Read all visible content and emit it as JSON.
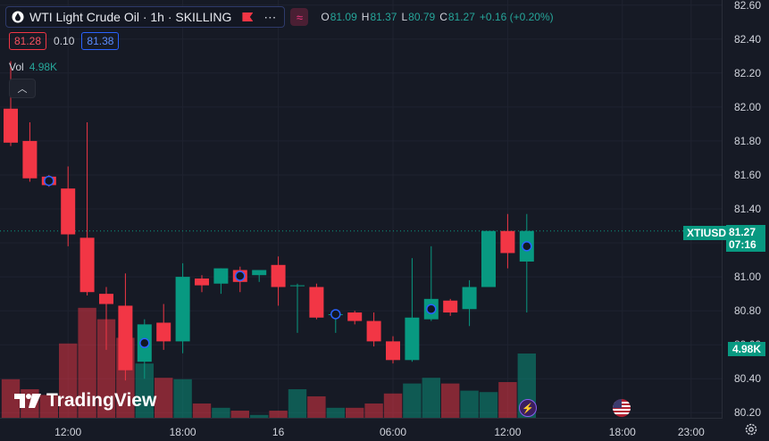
{
  "legend": {
    "title": "WTI Light Crude Oil · 1h · SKILLING",
    "ohlc": [
      {
        "k": "O",
        "v": "81.09"
      },
      {
        "k": "H",
        "v": "81.37"
      },
      {
        "k": "L",
        "v": "80.79"
      },
      {
        "k": "C",
        "v": "81.27"
      }
    ],
    "change": "+0.16 (+0.20%)",
    "bid": "81.28",
    "spread": "0.10",
    "ask": "81.38",
    "vol_label": "Vol",
    "vol_value": "4.98K"
  },
  "price_tag": {
    "symbol": "XTIUSD",
    "price": "81.27",
    "countdown": "07:16",
    "volume": "4.98K"
  },
  "branding": {
    "logo_text": "TradingView"
  },
  "icons": {
    "collapse": "chevron-up-icon",
    "symbol": "drop-icon",
    "flag": "flag-icon",
    "more": "more-dots-icon",
    "wave": "wave-icon",
    "settings": "gear-icon"
  },
  "colors": {
    "up": "#089981",
    "down": "#f23645",
    "background": "#161a25",
    "text": "#d1d4dc"
  },
  "chart_data": {
    "type": "candlestick",
    "title": "WTI Light Crude Oil · 1h · SKILLING",
    "y_ticks": [
      "82.60",
      "82.40",
      "82.20",
      "82.00",
      "81.80",
      "81.60",
      "81.40",
      "81.20",
      "81.00",
      "80.80",
      "80.60",
      "80.40",
      "80.20"
    ],
    "ylim": [
      80.17,
      82.63
    ],
    "x_ticks": [
      "12:00",
      "18:00",
      "16",
      "06:00",
      "12:00",
      "18:00",
      "23:00"
    ],
    "last_price": 81.27,
    "candles": [
      {
        "o": 81.99,
        "h": 82.27,
        "l": 81.77,
        "c": 81.79,
        "v": 0.27
      },
      {
        "o": 81.8,
        "h": 81.91,
        "l": 81.56,
        "c": 81.58,
        "v": 0.2
      },
      {
        "o": 81.59,
        "h": 81.6,
        "l": 81.53,
        "c": 81.54,
        "v": 0.16
      },
      {
        "o": 81.52,
        "h": 81.65,
        "l": 81.18,
        "c": 81.25,
        "v": 0.52
      },
      {
        "o": 81.23,
        "h": 81.91,
        "l": 80.89,
        "c": 80.91,
        "v": 0.77
      },
      {
        "o": 80.9,
        "h": 80.94,
        "l": 80.57,
        "c": 80.84,
        "v": 0.69
      },
      {
        "o": 80.83,
        "h": 81.02,
        "l": 80.39,
        "c": 80.45,
        "v": 0.56
      },
      {
        "o": 80.5,
        "h": 80.75,
        "l": 80.4,
        "c": 80.72,
        "v": 0.38
      },
      {
        "o": 80.73,
        "h": 80.84,
        "l": 80.57,
        "c": 80.62,
        "v": 0.28
      },
      {
        "o": 80.62,
        "h": 81.08,
        "l": 80.55,
        "c": 81.0,
        "v": 0.27
      },
      {
        "o": 80.99,
        "h": 81.01,
        "l": 80.91,
        "c": 80.95,
        "v": 0.1
      },
      {
        "o": 80.96,
        "h": 81.05,
        "l": 80.9,
        "c": 81.05,
        "v": 0.07
      },
      {
        "o": 81.04,
        "h": 81.06,
        "l": 80.91,
        "c": 80.97,
        "v": 0.05
      },
      {
        "o": 81.01,
        "h": 81.03,
        "l": 80.97,
        "c": 81.04,
        "v": 0.02
      },
      {
        "o": 81.07,
        "h": 81.12,
        "l": 80.83,
        "c": 80.94,
        "v": 0.05
      },
      {
        "o": 80.95,
        "h": 80.96,
        "l": 80.67,
        "c": 80.95,
        "v": 0.2
      },
      {
        "o": 80.94,
        "h": 80.96,
        "l": 80.75,
        "c": 80.76,
        "v": 0.15
      },
      {
        "o": 80.78,
        "h": 80.8,
        "l": 80.67,
        "c": 80.78,
        "v": 0.07
      },
      {
        "o": 80.79,
        "h": 80.8,
        "l": 80.72,
        "c": 80.74,
        "v": 0.07
      },
      {
        "o": 80.74,
        "h": 80.79,
        "l": 80.59,
        "c": 80.62,
        "v": 0.1
      },
      {
        "o": 80.62,
        "h": 80.65,
        "l": 80.49,
        "c": 80.51,
        "v": 0.17
      },
      {
        "o": 80.51,
        "h": 81.11,
        "l": 80.5,
        "c": 80.76,
        "v": 0.24
      },
      {
        "o": 80.75,
        "h": 81.18,
        "l": 80.74,
        "c": 80.87,
        "v": 0.28
      },
      {
        "o": 80.86,
        "h": 80.87,
        "l": 80.77,
        "c": 80.79,
        "v": 0.24
      },
      {
        "o": 80.81,
        "h": 80.98,
        "l": 80.71,
        "c": 80.94,
        "v": 0.19
      },
      {
        "o": 80.94,
        "h": 81.27,
        "l": 80.94,
        "c": 81.27,
        "v": 0.18
      },
      {
        "o": 81.27,
        "h": 81.37,
        "l": 81.05,
        "c": 81.14,
        "v": 0.25
      },
      {
        "o": 81.09,
        "h": 81.37,
        "l": 80.79,
        "c": 81.27,
        "v": 0.45
      }
    ]
  }
}
